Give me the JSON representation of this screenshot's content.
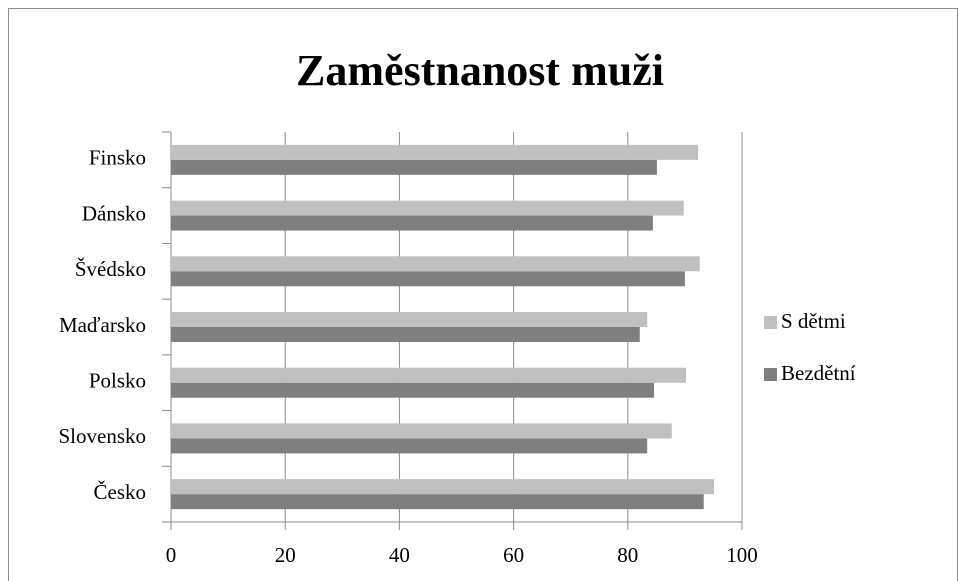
{
  "chart_data": {
    "type": "barh",
    "title": "Zaměstnanost muži",
    "categories": [
      "Česko",
      "Slovensko",
      "Polsko",
      "Maďarsko",
      "Švédsko",
      "Dánsko",
      "Finsko"
    ],
    "series": [
      {
        "name": "Bezdětní",
        "color": "#7f7f7f",
        "values": [
          93.3,
          83.4,
          84.6,
          82.1,
          90.0,
          84.4,
          85.1
        ]
      },
      {
        "name": "S dětmi",
        "color": "#c0c0c0",
        "values": [
          95.1,
          87.7,
          90.2,
          83.4,
          92.6,
          89.8,
          92.3
        ]
      }
    ],
    "xlim": [
      0,
      100
    ],
    "xticks": [
      0,
      20,
      40,
      60,
      80,
      100
    ],
    "grid": true,
    "legend": "right"
  }
}
